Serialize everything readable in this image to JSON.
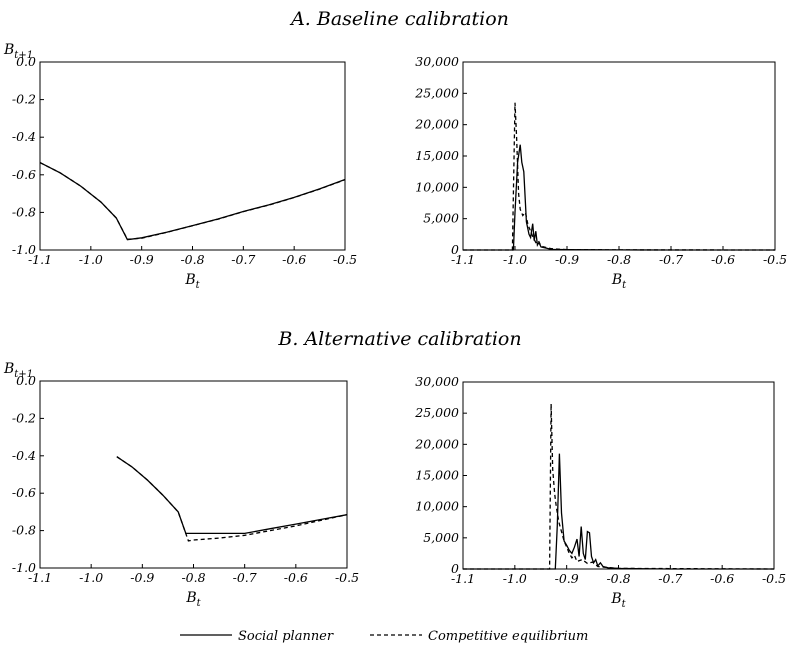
{
  "panels": [
    {
      "title": "A. Baseline calibration"
    },
    {
      "title": "B. Alternative calibration"
    }
  ],
  "legend": [
    {
      "label": "Social planner",
      "style": "solid"
    },
    {
      "label": "Competitive equilibrium",
      "style": "dashed"
    }
  ],
  "chart_data": [
    {
      "type": "line",
      "panel": "A",
      "xlabel": "B",
      "xlabel_sub": "t",
      "ylabel": "B",
      "ylabel_sub": "t+1",
      "xlim": [
        -1.1,
        -0.5
      ],
      "ylim": [
        -1.0,
        0.0
      ],
      "xticks": [
        "-1.1",
        "-1.0",
        "-0.9",
        "-0.8",
        "-0.7",
        "-0.6",
        "-0.5"
      ],
      "yticks": [
        "0.0",
        "-0.2",
        "-0.4",
        "-0.6",
        "-0.8",
        "-1.0"
      ],
      "series": [
        {
          "name": "Social planner",
          "style": "solid",
          "x": [
            -1.1,
            -1.06,
            -1.02,
            -0.98,
            -0.95,
            -0.928,
            -0.9,
            -0.85,
            -0.8,
            -0.75,
            -0.7,
            -0.65,
            -0.6,
            -0.55,
            -0.5
          ],
          "y": [
            -0.535,
            -0.59,
            -0.66,
            -0.745,
            -0.83,
            -0.945,
            -0.935,
            -0.905,
            -0.87,
            -0.835,
            -0.795,
            -0.76,
            -0.72,
            -0.675,
            -0.625
          ]
        },
        {
          "name": "Competitive equilibrium",
          "style": "dashed",
          "x": [
            -1.1,
            -1.06,
            -1.02,
            -0.98,
            -0.95,
            -0.928,
            -0.9,
            -0.85,
            -0.8,
            -0.75,
            -0.7,
            -0.65,
            -0.6,
            -0.55,
            -0.5
          ],
          "y": [
            -0.535,
            -0.59,
            -0.66,
            -0.745,
            -0.83,
            -0.943,
            -0.937,
            -0.906,
            -0.871,
            -0.836,
            -0.796,
            -0.761,
            -0.721,
            -0.676,
            -0.626
          ]
        }
      ]
    },
    {
      "type": "line",
      "panel": "A",
      "xlabel": "B",
      "xlabel_sub": "t",
      "xlim": [
        -1.1,
        -0.5
      ],
      "ylim": [
        0,
        30000
      ],
      "xticks": [
        "-1.1",
        "-1.0",
        "-0.9",
        "-0.8",
        "-0.7",
        "-0.6",
        "-0.5"
      ],
      "yticks": [
        "30,000",
        "25,000",
        "20,000",
        "15,000",
        "10,000",
        "5,000",
        "0"
      ],
      "series": [
        {
          "name": "Social planner",
          "style": "solid",
          "x": [
            -1.1,
            -1.003,
            -1.0,
            -0.995,
            -0.99,
            -0.987,
            -0.983,
            -0.978,
            -0.973,
            -0.97,
            -0.966,
            -0.963,
            -0.96,
            -0.957,
            -0.954,
            -0.95,
            -0.94,
            -0.93,
            -0.9,
            -0.8,
            -0.7,
            -0.5
          ],
          "y": [
            0,
            0,
            6000,
            14000,
            16800,
            14000,
            12500,
            4500,
            2500,
            2000,
            4200,
            1500,
            3000,
            800,
            1200,
            500,
            300,
            100,
            50,
            20,
            0,
            0
          ]
        },
        {
          "name": "Competitive equilibrium",
          "style": "dashed",
          "x": [
            -1.1,
            -1.005,
            -1.0,
            -0.997,
            -0.993,
            -0.99,
            -0.985,
            -0.98,
            -0.975,
            -0.97,
            -0.965,
            -0.96,
            -0.955,
            -0.95,
            -0.93,
            -0.9,
            -0.8,
            -0.5
          ],
          "y": [
            0,
            0,
            23500,
            18000,
            9000,
            6500,
            5500,
            6000,
            4000,
            3000,
            2000,
            1200,
            1500,
            600,
            200,
            50,
            10,
            0
          ]
        }
      ]
    },
    {
      "type": "line",
      "panel": "B",
      "xlabel": "B",
      "xlabel_sub": "t",
      "ylabel": "B",
      "ylabel_sub": "t+1",
      "xlim": [
        -1.1,
        -0.5
      ],
      "ylim": [
        -1.0,
        0.0
      ],
      "xticks": [
        "-1.1",
        "-1.0",
        "-0.9",
        "-0.8",
        "-0.7",
        "-0.6",
        "-0.5"
      ],
      "yticks": [
        "0.0",
        "-0.2",
        "-0.4",
        "-0.6",
        "-0.8",
        "-1.0"
      ],
      "series": [
        {
          "name": "Social planner",
          "style": "solid",
          "x": [
            -0.95,
            -0.92,
            -0.89,
            -0.86,
            -0.83,
            -0.815,
            -0.8,
            -0.75,
            -0.7,
            -0.65,
            -0.6,
            -0.55,
            -0.5
          ],
          "y": [
            -0.405,
            -0.46,
            -0.53,
            -0.61,
            -0.7,
            -0.815,
            -0.815,
            -0.815,
            -0.815,
            -0.79,
            -0.765,
            -0.74,
            -0.715
          ]
        },
        {
          "name": "Competitive equilibrium",
          "style": "dashed",
          "x": [
            -0.95,
            -0.92,
            -0.89,
            -0.86,
            -0.83,
            -0.81,
            -0.8,
            -0.75,
            -0.7,
            -0.65,
            -0.6,
            -0.55,
            -0.5
          ],
          "y": [
            -0.405,
            -0.46,
            -0.53,
            -0.61,
            -0.7,
            -0.855,
            -0.85,
            -0.84,
            -0.825,
            -0.8,
            -0.775,
            -0.745,
            -0.715
          ]
        }
      ]
    },
    {
      "type": "line",
      "panel": "B",
      "xlabel": "B",
      "xlabel_sub": "t",
      "xlim": [
        -1.1,
        -0.5
      ],
      "ylim": [
        0,
        30000
      ],
      "xticks": [
        "-1.1",
        "-1.0",
        "-0.9",
        "-0.8",
        "-0.7",
        "-0.6",
        "-0.5"
      ],
      "yticks": [
        "30,000",
        "25,000",
        "20,000",
        "15,000",
        "10,000",
        "5,000",
        "0"
      ],
      "series": [
        {
          "name": "Social planner",
          "style": "solid",
          "x": [
            -1.1,
            -0.922,
            -0.918,
            -0.914,
            -0.91,
            -0.905,
            -0.9,
            -0.895,
            -0.89,
            -0.885,
            -0.88,
            -0.876,
            -0.872,
            -0.868,
            -0.864,
            -0.86,
            -0.856,
            -0.852,
            -0.848,
            -0.844,
            -0.84,
            -0.835,
            -0.83,
            -0.82,
            -0.8,
            -0.7,
            -0.5
          ],
          "y": [
            0,
            0,
            7000,
            18500,
            9000,
            4500,
            3800,
            3000,
            2500,
            3500,
            4800,
            2000,
            6800,
            2500,
            1500,
            6000,
            5800,
            2000,
            1000,
            1500,
            500,
            1000,
            400,
            200,
            100,
            0,
            0
          ]
        },
        {
          "name": "Competitive equilibrium",
          "style": "dashed",
          "x": [
            -1.1,
            -0.933,
            -0.93,
            -0.927,
            -0.923,
            -0.92,
            -0.915,
            -0.91,
            -0.905,
            -0.9,
            -0.895,
            -0.89,
            -0.885,
            -0.88,
            -0.87,
            -0.86,
            -0.85,
            -0.84,
            -0.83,
            -0.8,
            -0.5
          ],
          "y": [
            0,
            0,
            26500,
            16000,
            12000,
            10000,
            7500,
            6000,
            4500,
            3500,
            2500,
            1800,
            2200,
            1200,
            1500,
            900,
            1100,
            400,
            300,
            100,
            0
          ]
        }
      ]
    }
  ]
}
